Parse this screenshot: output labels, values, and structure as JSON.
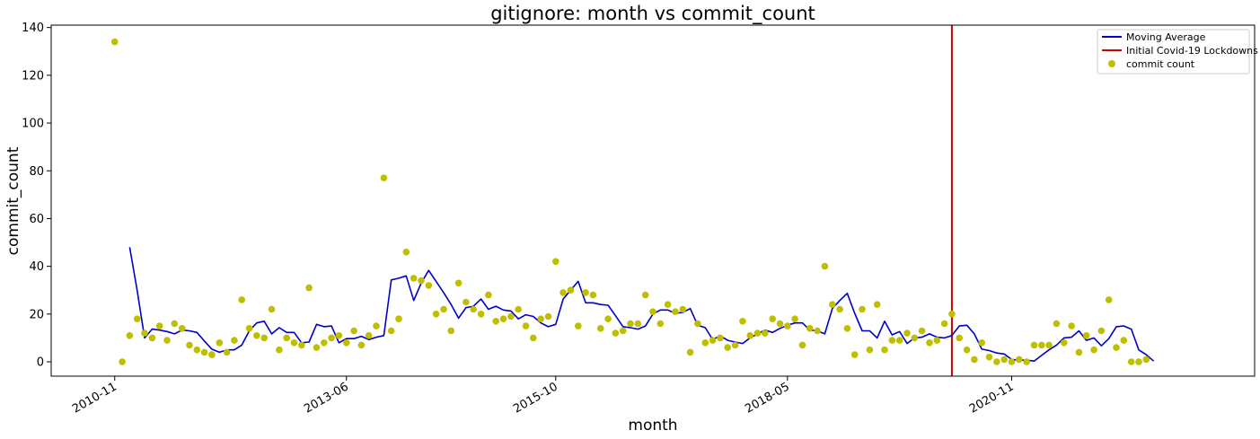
{
  "chart_data": {
    "type": "line+scatter",
    "title": "gitignore: month vs commit_count",
    "xlabel": "month",
    "ylabel": "commit_count",
    "x_tick_labels": [
      "2010-11",
      "2013-06",
      "2015-10",
      "2018-05",
      "2020-11"
    ],
    "y_ticks": [
      0,
      20,
      40,
      60,
      80,
      100,
      120,
      140
    ],
    "ylim": [
      -6,
      141
    ],
    "xlim_months": [
      -8.5,
      152.5
    ],
    "x_tick_months": [
      0,
      31,
      59,
      90,
      120
    ],
    "legend_position": "top-right",
    "colors": {
      "moving_average": "#0000cc",
      "covid_line": "#cc0000",
      "commit_count": "#bfbf00"
    },
    "covid_line_month": "2020-03",
    "covid_line_index": 112,
    "series": [
      {
        "name": "commit count",
        "kind": "scatter",
        "start_month": "2010-11",
        "values": [
          134,
          0,
          11,
          18,
          12,
          10,
          15,
          9,
          16,
          14,
          7,
          5,
          4,
          3,
          8,
          4,
          9,
          26,
          14,
          11,
          10,
          22,
          5,
          10,
          8,
          7,
          31,
          6,
          8,
          10,
          11,
          8,
          13,
          7,
          11,
          15,
          77,
          13,
          18,
          46,
          35,
          34,
          32,
          20,
          22,
          13,
          33,
          25,
          22,
          20,
          28,
          17,
          18,
          19,
          22,
          15,
          10,
          18,
          19,
          42,
          29,
          30,
          15,
          29,
          28,
          14,
          18,
          12,
          13,
          16,
          16,
          28,
          21,
          16,
          24,
          21,
          22,
          4,
          16,
          8,
          9,
          10,
          6,
          7,
          17,
          11,
          12,
          12,
          18,
          16,
          15,
          18,
          7,
          14,
          13,
          40,
          24,
          22,
          14,
          3,
          22,
          5,
          24,
          5,
          9,
          9,
          12,
          10,
          13,
          8,
          9,
          16,
          20,
          10,
          5,
          1,
          8,
          2,
          0,
          1,
          0,
          1,
          0,
          7,
          7,
          7,
          16,
          8,
          15,
          4,
          11,
          5,
          13,
          26,
          6,
          9,
          0,
          0,
          1
        ]
      },
      {
        "name": "Moving Average",
        "kind": "line",
        "start_month": "2011-01",
        "values": [
          48,
          30,
          10,
          13.7,
          13.3,
          12.7,
          11.7,
          13.3,
          13,
          12.3,
          8.7,
          5.3,
          4,
          5,
          5,
          7,
          13,
          16.3,
          17,
          11.7,
          14.3,
          12.3,
          12.3,
          8,
          8.3,
          15.7,
          14.7,
          15,
          8,
          9.7,
          9.7,
          10.7,
          9.3,
          10.3,
          11,
          34.3,
          35,
          36,
          25.7,
          33,
          38.3,
          33.7,
          29,
          24,
          18.3,
          22.7,
          23.3,
          26.3,
          22,
          23.3,
          21.7,
          21.3,
          18,
          19.7,
          19,
          16.3,
          14.7,
          15.7,
          26.3,
          30,
          33.7,
          24.7,
          24.7,
          24,
          23.7,
          19.3,
          14.7,
          14.3,
          13.7,
          15,
          20,
          21.7,
          21.7,
          20.3,
          20.7,
          22.3,
          15.3,
          14.3,
          9.3,
          11,
          9,
          8.3,
          7.7,
          10,
          11.7,
          13.3,
          12.3,
          14,
          15.3,
          16.3,
          16.3,
          13.3,
          13,
          11.7,
          22.3,
          25.7,
          28.7,
          20.3,
          13,
          13,
          10,
          17,
          11.3,
          12.7,
          7.7,
          10,
          10.3,
          11.7,
          10.3,
          10,
          11,
          15,
          15.3,
          11.7,
          5.3,
          4.7,
          3.7,
          3.3,
          1,
          0.7,
          0.7,
          0.3,
          2.7,
          5,
          7,
          10,
          10.3,
          13,
          9,
          10,
          6.7,
          9.7,
          14.7,
          15,
          13.7,
          5,
          3,
          0.3
        ]
      },
      {
        "name": "Initial Covid-19 Lockdowns",
        "kind": "vline"
      }
    ]
  }
}
